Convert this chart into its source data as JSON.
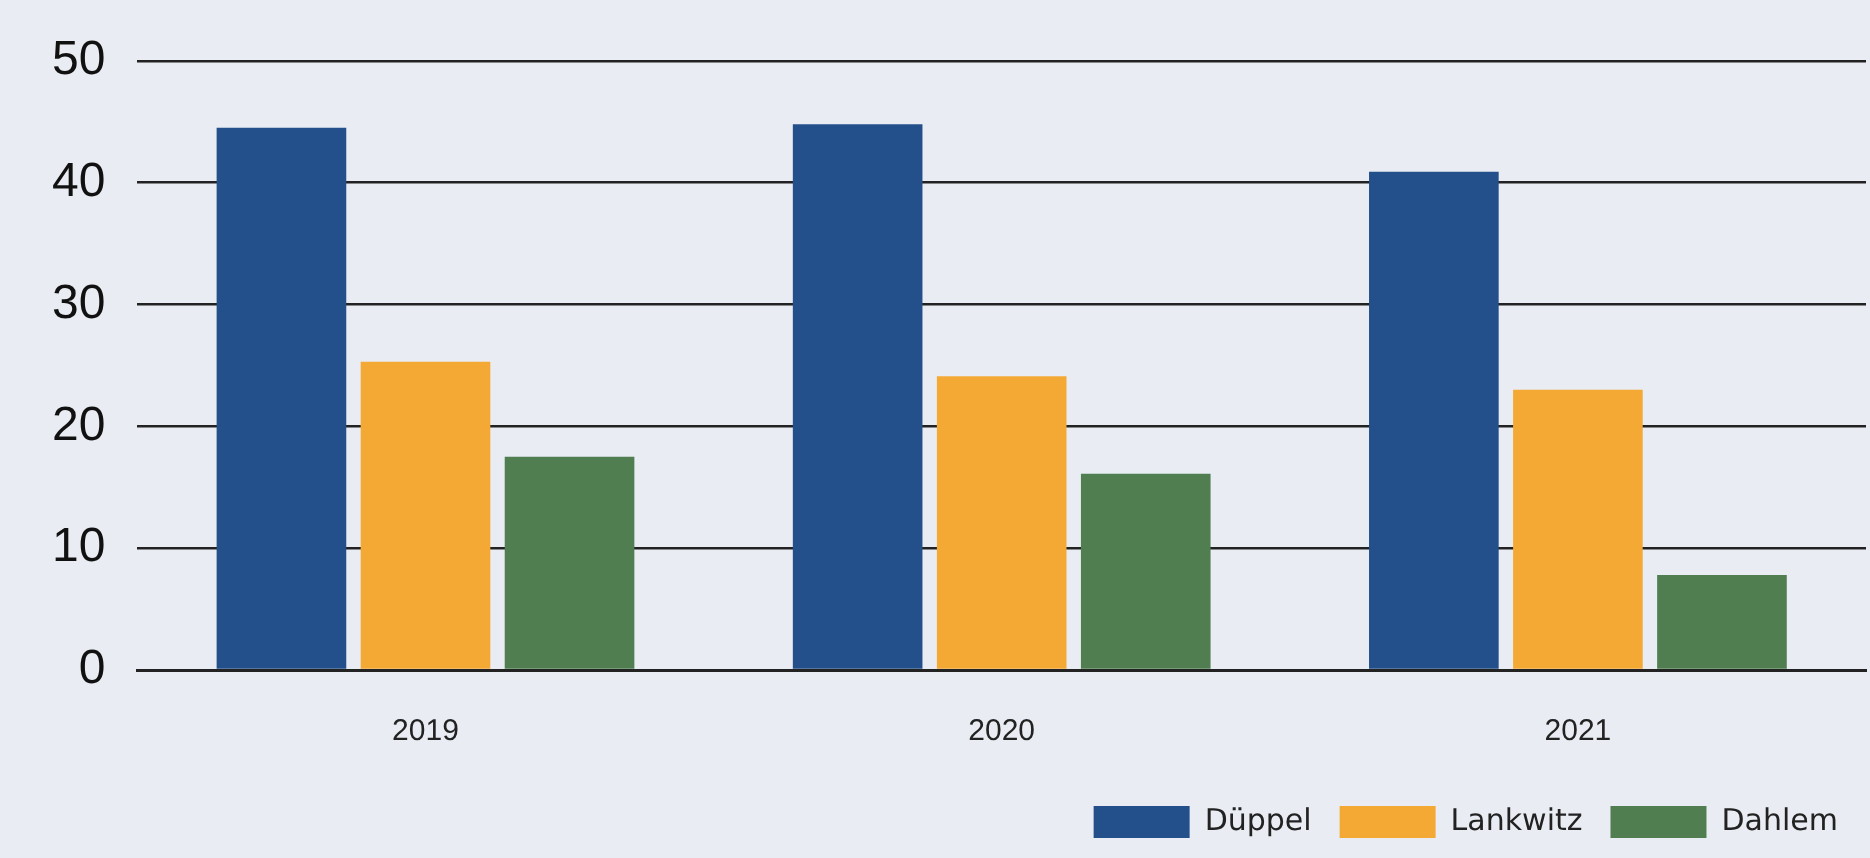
{
  "chart_data": {
    "type": "bar",
    "categories": [
      "2019",
      "2020",
      "2021"
    ],
    "series": [
      {
        "name": "Düppel",
        "color": "#234f8a",
        "values": [
          44.5,
          44.8,
          40.9
        ]
      },
      {
        "name": "Lankwitz",
        "color": "#f5a935",
        "values": [
          25.3,
          24.1,
          23.0
        ]
      },
      {
        "name": "Dahlem",
        "color": "#507e51",
        "values": [
          17.5,
          16.1,
          7.8
        ]
      }
    ],
    "ylim": [
      0,
      50
    ],
    "yticks": [
      0,
      10,
      20,
      30,
      40,
      50
    ],
    "grid": "y",
    "legend": "bottom right"
  }
}
